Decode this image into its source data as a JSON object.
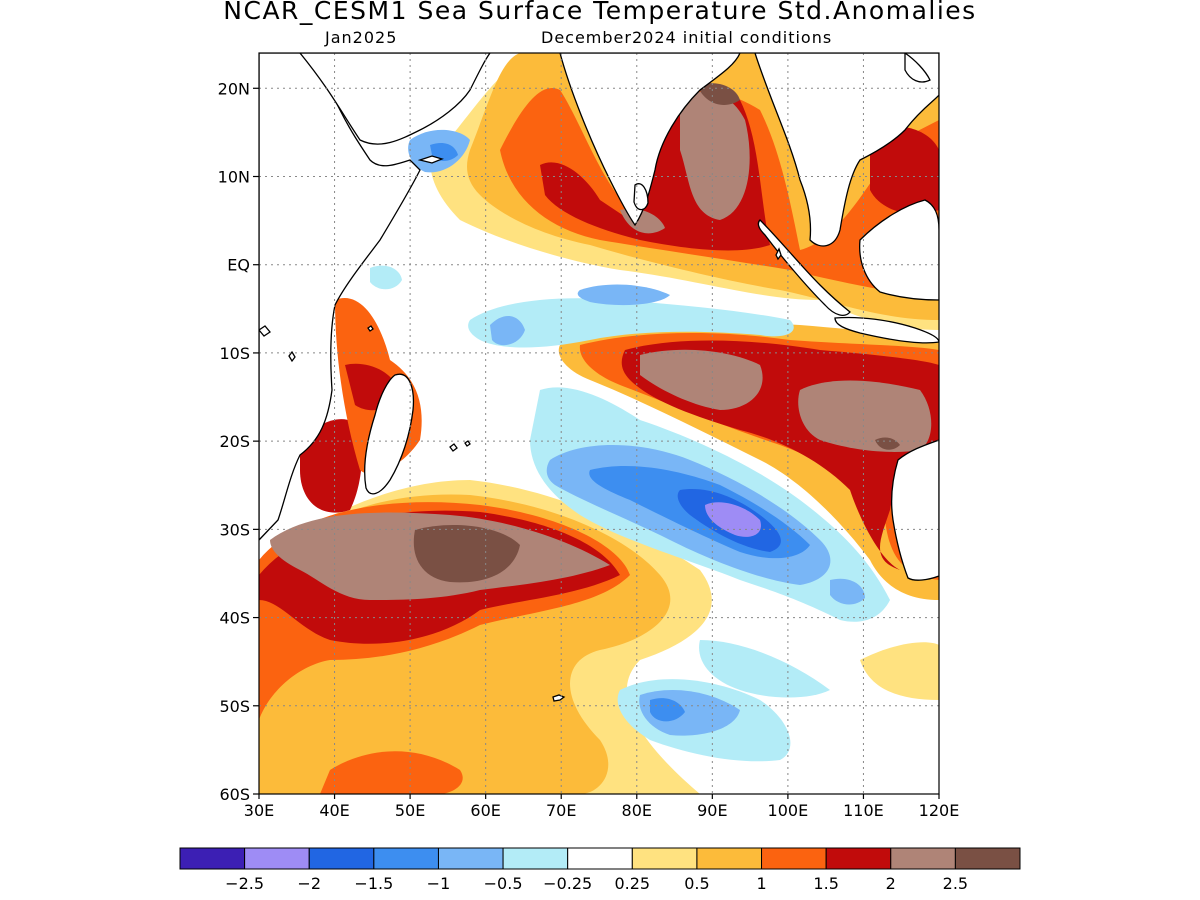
{
  "header": {
    "title": "NCAR_CESM1 Sea Surface Temperature Std.Anomalies",
    "target_month": "Jan2025",
    "init_conditions": "December2024 initial conditions"
  },
  "map": {
    "lon_range": [
      30,
      120
    ],
    "lat_range": [
      -60,
      24
    ],
    "grid_lines": "dotted"
  },
  "axes": {
    "y_ticks": [
      {
        "lat": 20,
        "label": "20N"
      },
      {
        "lat": 10,
        "label": "10N"
      },
      {
        "lat": 0,
        "label": "EQ"
      },
      {
        "lat": -10,
        "label": "10S"
      },
      {
        "lat": -20,
        "label": "20S"
      },
      {
        "lat": -30,
        "label": "30S"
      },
      {
        "lat": -40,
        "label": "40S"
      },
      {
        "lat": -50,
        "label": "50S"
      },
      {
        "lat": -60,
        "label": "60S"
      }
    ],
    "x_ticks": [
      {
        "lon": 30,
        "label": "30E"
      },
      {
        "lon": 40,
        "label": "40E"
      },
      {
        "lon": 50,
        "label": "50E"
      },
      {
        "lon": 60,
        "label": "60E"
      },
      {
        "lon": 70,
        "label": "70E"
      },
      {
        "lon": 80,
        "label": "80E"
      },
      {
        "lon": 90,
        "label": "90E"
      },
      {
        "lon": 100,
        "label": "100E"
      },
      {
        "lon": 110,
        "label": "110E"
      },
      {
        "lon": 120,
        "label": "120E"
      }
    ]
  },
  "colorbar": {
    "colors": [
      "#3c1fb4",
      "#9e8cf5",
      "#2166e3",
      "#3d8ef0",
      "#79b6f6",
      "#b3ecf7",
      "#ffffff",
      "#ffe280",
      "#fcbb3a",
      "#fb6310",
      "#c10b0b",
      "#af8477",
      "#7a5044"
    ],
    "labels": [
      "−2.5",
      "−2",
      "−1.5",
      "−1",
      "−0.5",
      "−0.25",
      "0.25",
      "0.5",
      "1",
      "1.5",
      "2",
      "2.5"
    ]
  }
}
